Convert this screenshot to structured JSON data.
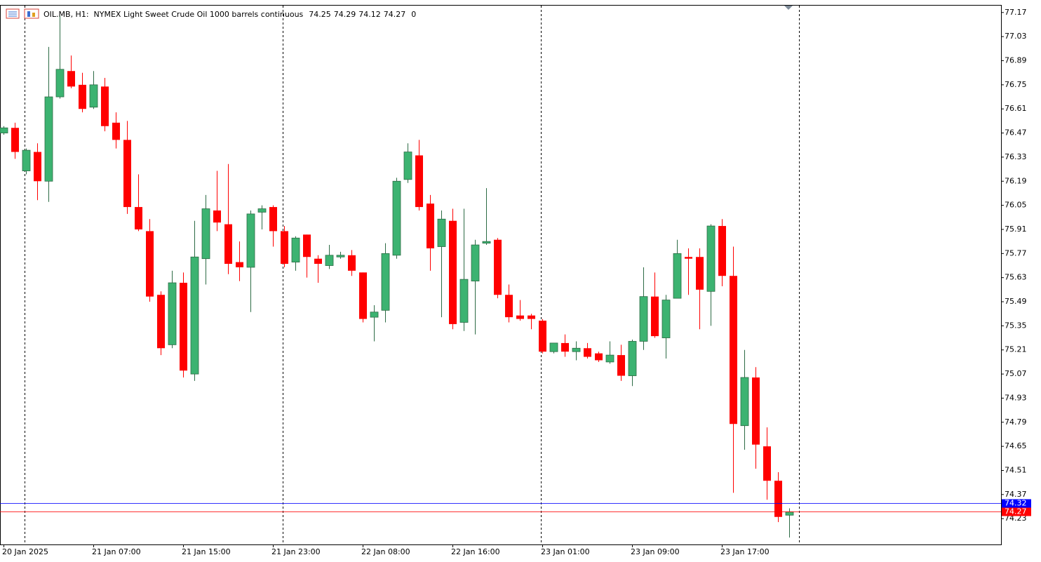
{
  "chart_data": {
    "type": "candlestick",
    "title": "OIL.MB, H1:  NYMEX Light Sweet Crude Oil 1000 barrels continuous",
    "volume": 0,
    "categories": [
      "20 Jan 2025",
      null,
      null,
      null,
      null,
      null,
      null,
      null,
      "21 Jan 07:00",
      null,
      null,
      null,
      null,
      null,
      null,
      null,
      "21 Jan 15:00",
      null,
      null,
      null,
      null,
      null,
      null,
      null,
      "21 Jan 23:00",
      null,
      null,
      null,
      null,
      null,
      null,
      null,
      "22 Jan 08:00",
      null,
      null,
      null,
      null,
      null,
      null,
      null,
      "22 Jan 16:00",
      null,
      null,
      null,
      null,
      null,
      null,
      null,
      "23 Jan 01:00",
      null,
      null,
      null,
      null,
      null,
      null,
      null,
      "23 Jan 09:00",
      null,
      null,
      null,
      null,
      null,
      null,
      null,
      "23 Jan 17:00",
      null,
      null,
      null,
      null,
      null,
      null
    ],
    "open": [
      76.47,
      76.5,
      76.25,
      76.36,
      76.19,
      76.68,
      76.83,
      76.75,
      76.62,
      76.74,
      76.53,
      76.43,
      76.04,
      75.9,
      75.53,
      75.24,
      75.6,
      75.07,
      75.74,
      76.02,
      75.94,
      75.72,
      75.69,
      76.01,
      76.04,
      75.9,
      75.72,
      75.88,
      75.74,
      75.7,
      75.75,
      75.76,
      75.66,
      75.4,
      75.44,
      75.76,
      76.2,
      76.34,
      76.06,
      75.81,
      75.96,
      75.37,
      75.61,
      75.83,
      75.85,
      75.53,
      75.41,
      75.41,
      75.38,
      75.2,
      75.25,
      75.2,
      75.22,
      75.19,
      75.14,
      75.18,
      75.06,
      75.26,
      75.52,
      75.28,
      75.51,
      75.75,
      75.75,
      75.55,
      75.93,
      75.64,
      74.77,
      75.05,
      74.65,
      74.45,
      74.25
    ],
    "high": [
      76.51,
      76.53,
      76.38,
      76.41,
      76.97,
      77.15,
      76.92,
      76.82,
      76.83,
      76.79,
      76.59,
      76.54,
      76.23,
      75.97,
      75.55,
      75.67,
      75.66,
      75.96,
      76.11,
      76.25,
      76.29,
      75.84,
      76.02,
      76.05,
      76.05,
      75.93,
      75.87,
      75.88,
      75.76,
      75.82,
      75.78,
      75.79,
      75.66,
      75.47,
      75.83,
      76.21,
      76.41,
      76.43,
      76.11,
      76.02,
      76.03,
      76.03,
      75.85,
      76.15,
      75.86,
      75.59,
      75.5,
      75.42,
      75.39,
      75.25,
      75.3,
      75.26,
      75.25,
      75.2,
      75.26,
      75.24,
      75.27,
      75.69,
      75.66,
      75.53,
      75.85,
      75.8,
      75.8,
      75.94,
      75.97,
      75.81,
      75.21,
      75.11,
      74.76,
      74.5,
      74.29
    ],
    "low": [
      76.46,
      76.32,
      76.23,
      76.08,
      76.07,
      76.67,
      76.73,
      76.59,
      76.61,
      76.48,
      76.38,
      76.0,
      75.9,
      75.49,
      75.18,
      75.22,
      75.05,
      75.03,
      75.59,
      75.9,
      75.65,
      75.61,
      75.43,
      75.91,
      75.81,
      75.69,
      75.67,
      75.63,
      75.6,
      75.68,
      75.74,
      75.64,
      75.37,
      75.26,
      75.37,
      75.74,
      76.18,
      76.02,
      75.67,
      75.4,
      75.33,
      75.32,
      75.3,
      75.82,
      75.51,
      75.37,
      75.38,
      75.33,
      75.19,
      75.19,
      75.17,
      75.15,
      75.16,
      75.14,
      75.13,
      75.03,
      75.0,
      75.21,
      75.28,
      75.16,
      75.51,
      75.53,
      75.33,
      75.35,
      75.58,
      74.38,
      74.63,
      74.52,
      74.34,
      74.21,
      74.12
    ],
    "close": [
      76.5,
      76.36,
      76.37,
      76.19,
      76.68,
      76.84,
      76.74,
      76.61,
      76.75,
      76.51,
      76.43,
      76.04,
      75.91,
      75.52,
      75.22,
      75.6,
      75.09,
      75.75,
      76.03,
      75.95,
      75.71,
      75.69,
      76.0,
      76.03,
      75.9,
      75.71,
      75.86,
      75.75,
      75.71,
      75.76,
      75.76,
      75.67,
      75.39,
      75.43,
      75.77,
      76.19,
      76.36,
      76.04,
      75.8,
      75.97,
      75.36,
      75.62,
      75.82,
      75.84,
      75.53,
      75.4,
      75.39,
      75.39,
      75.2,
      75.25,
      75.2,
      75.22,
      75.17,
      75.15,
      75.18,
      75.06,
      75.26,
      75.52,
      75.29,
      75.5,
      75.77,
      75.74,
      75.56,
      75.93,
      75.64,
      74.78,
      75.05,
      74.66,
      74.45,
      74.24,
      74.27
    ],
    "up_color": "#3cb371",
    "down_color": "#ff0000",
    "ylim": [
      74.08,
      77.21
    ],
    "yticks": [
      77.17,
      77.03,
      76.89,
      76.75,
      76.61,
      76.47,
      76.33,
      76.19,
      76.05,
      75.91,
      75.77,
      75.63,
      75.49,
      75.35,
      75.21,
      75.07,
      74.93,
      74.79,
      74.65,
      74.51,
      74.37,
      74.23
    ],
    "price_lines": [
      {
        "value": 74.32,
        "color": "#0000ff"
      },
      {
        "value": 74.27,
        "color": "#ff0000"
      }
    ]
  }
}
